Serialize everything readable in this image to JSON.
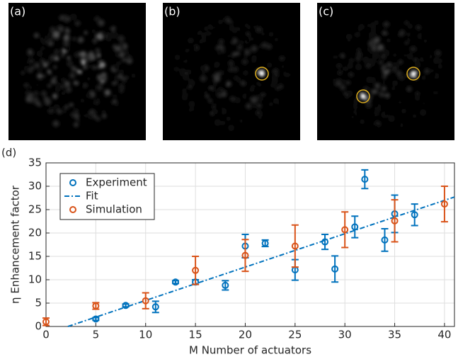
{
  "images": [
    {
      "label": "(a)"
    },
    {
      "label": "(b)"
    },
    {
      "label": "(c)"
    }
  ],
  "chart_data": {
    "type": "errorbar",
    "panel_label": "(d)",
    "xlabel": "M Number of actuators",
    "ylabel": "η Enhancement factor",
    "xlim": [
      0,
      41
    ],
    "ylim": [
      0,
      35
    ],
    "xticks": [
      0,
      5,
      10,
      15,
      20,
      25,
      30,
      35,
      40
    ],
    "yticks": [
      0,
      5,
      10,
      15,
      20,
      25,
      30,
      35
    ],
    "grid": true,
    "legend": "upper left",
    "series": [
      {
        "name": "Experiment",
        "color": "#0072bd",
        "kind": "errorbar",
        "x": [
          5,
          8,
          11,
          13,
          15,
          18,
          20,
          22,
          25,
          28,
          29,
          31,
          32,
          34,
          35,
          37
        ],
        "values": [
          1.6,
          4.5,
          4.2,
          9.5,
          9.5,
          8.8,
          17.2,
          17.8,
          12.1,
          18.1,
          12.3,
          21.3,
          31.5,
          18.5,
          24.1,
          23.9
        ],
        "errors": [
          0.3,
          0.3,
          1.2,
          0.3,
          0.5,
          1.0,
          2.5,
          0.7,
          2.2,
          1.6,
          2.8,
          2.3,
          2.0,
          2.4,
          4.0,
          2.3
        ]
      },
      {
        "name": "Fit",
        "color": "#0072bd",
        "kind": "line",
        "x": [
          2.2,
          41
        ],
        "values": [
          0,
          27.7
        ]
      },
      {
        "name": "Simulation",
        "color": "#d95319",
        "kind": "errorbar",
        "x": [
          0,
          5,
          10,
          15,
          20,
          25,
          30,
          35,
          40
        ],
        "values": [
          1.0,
          4.4,
          5.5,
          12.0,
          15.2,
          17.2,
          20.7,
          22.6,
          26.2
        ],
        "errors": [
          0.8,
          0.7,
          1.7,
          3.0,
          3.4,
          4.5,
          3.8,
          4.5,
          3.8
        ]
      }
    ]
  }
}
